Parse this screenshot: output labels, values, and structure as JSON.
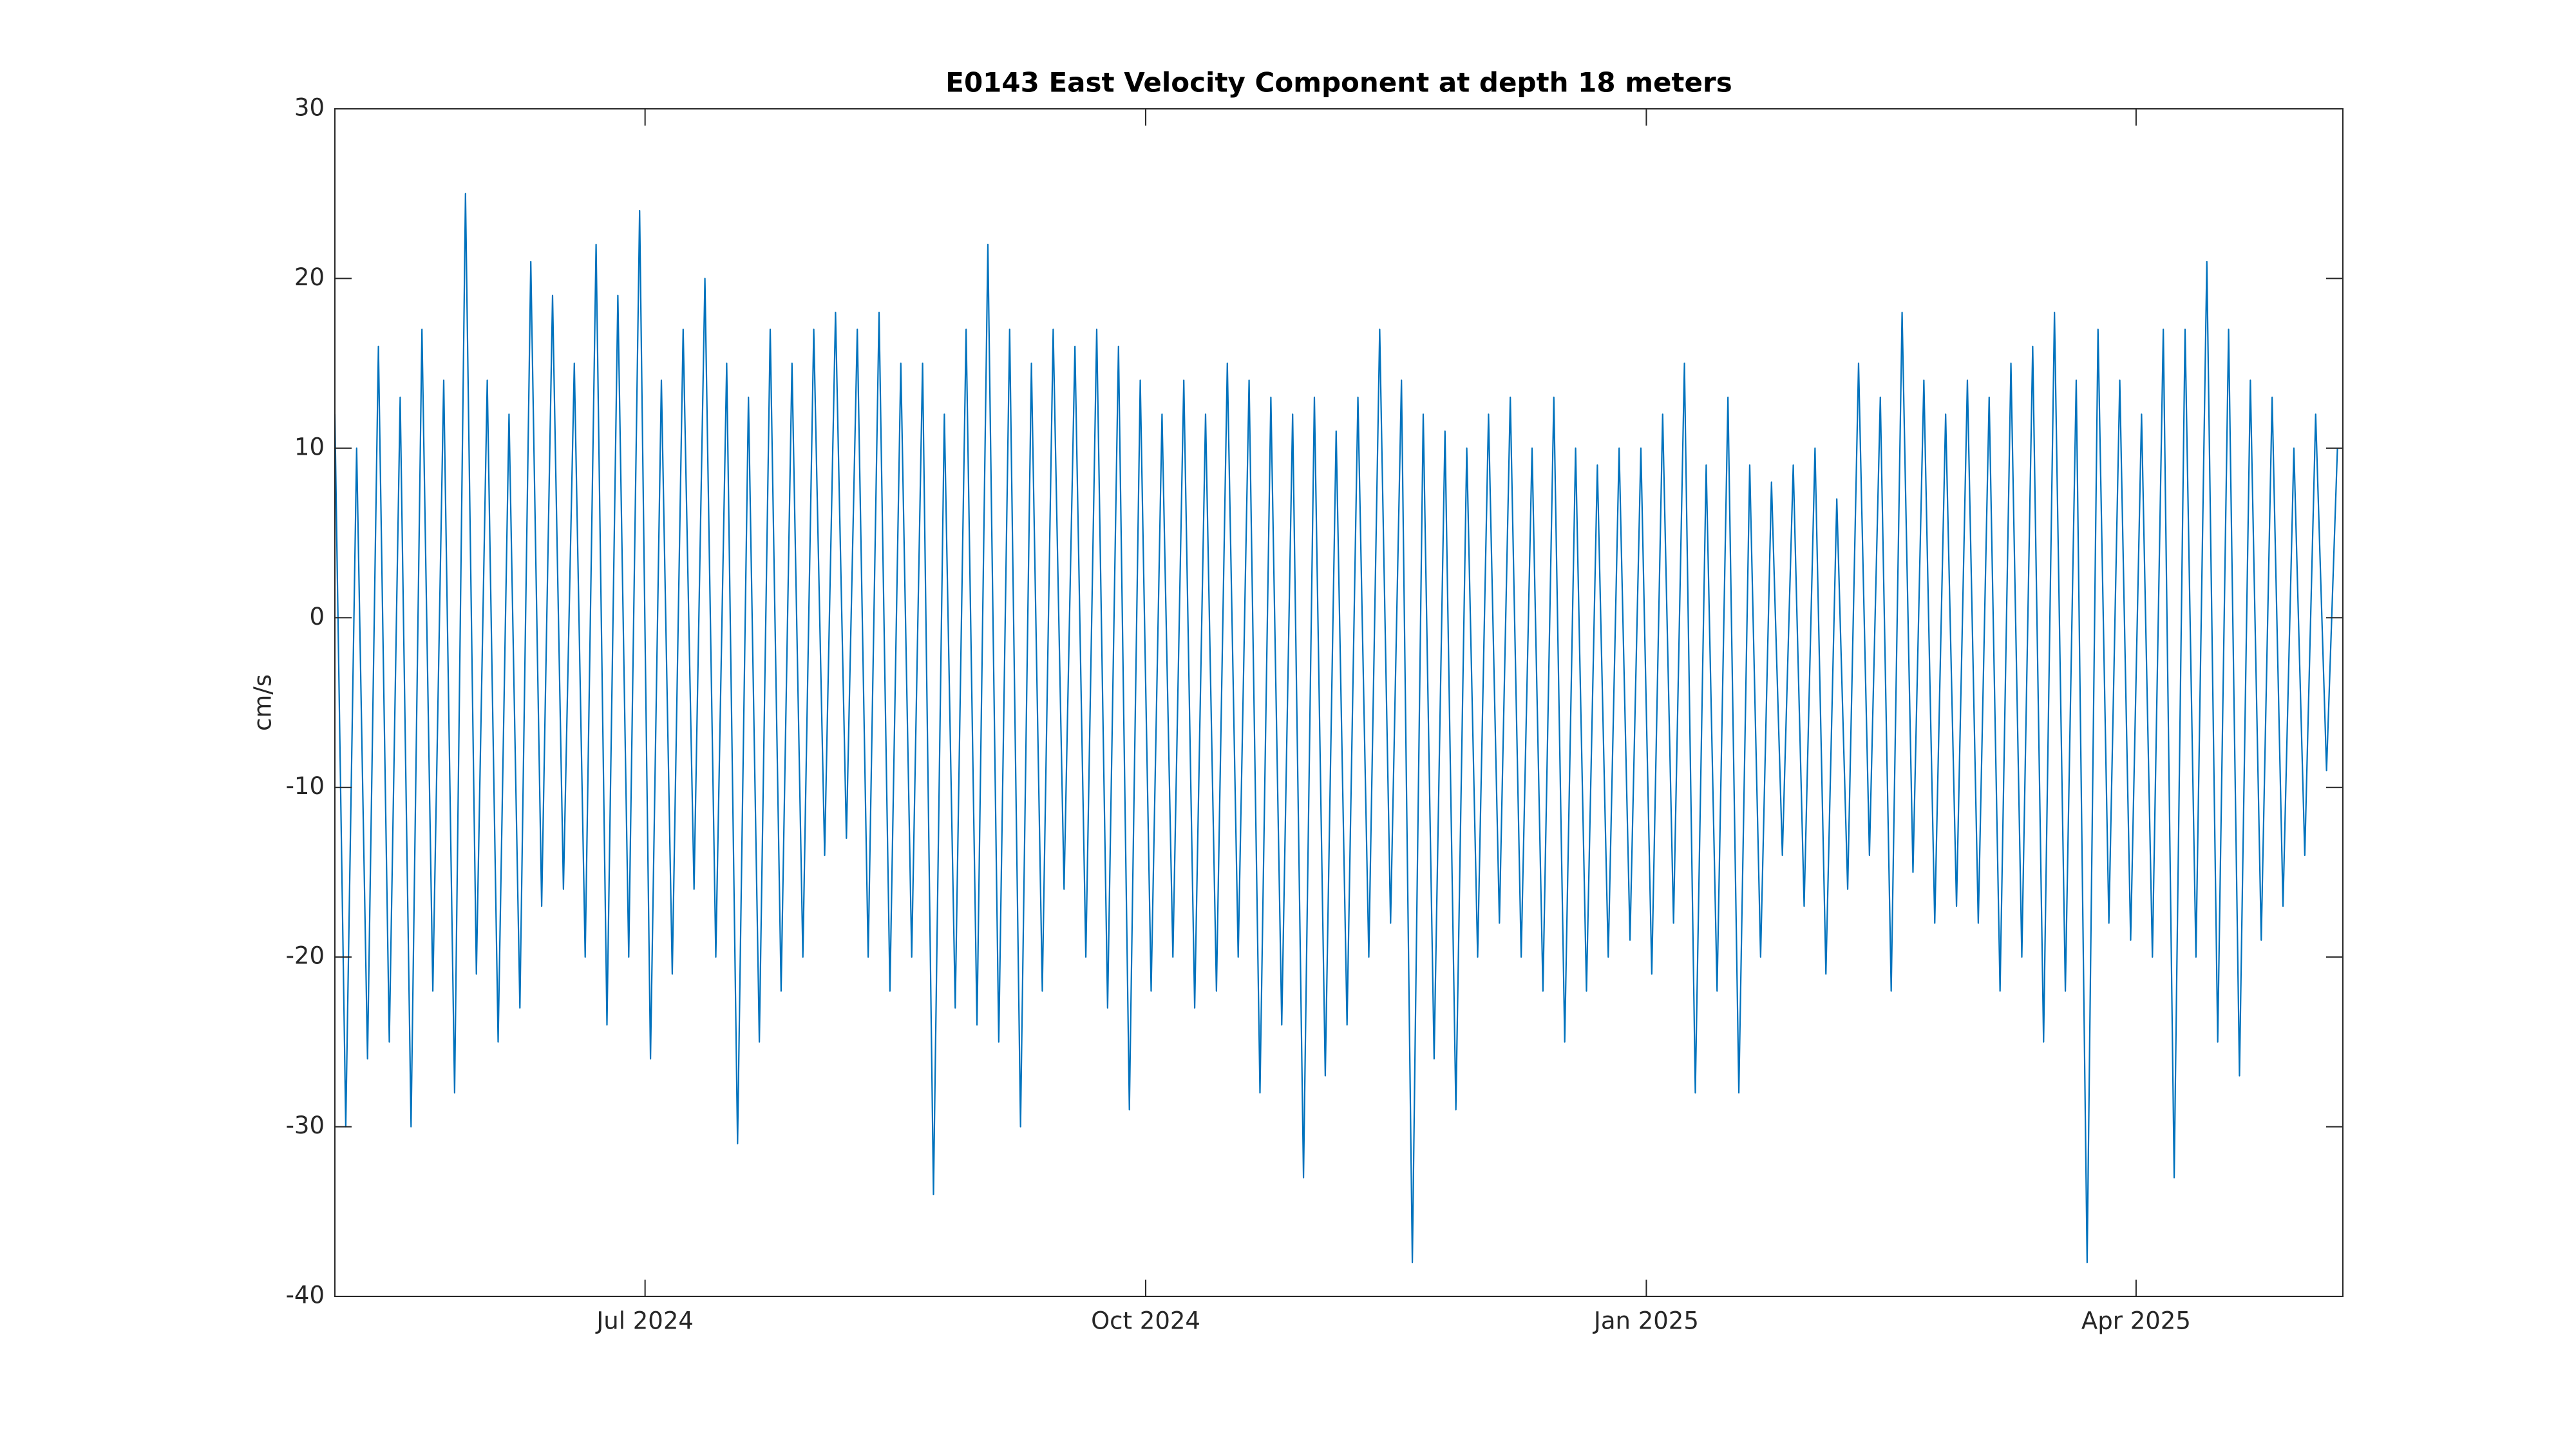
{
  "chart_data": {
    "type": "line",
    "title": "E0143 East Velocity Component at depth 18 meters",
    "ylabel": "cm/s",
    "color": "#0072bd",
    "x": [
      0,
      2,
      4,
      6,
      8,
      10,
      12,
      14,
      16,
      18,
      20,
      22,
      24,
      26,
      28,
      30,
      32,
      34,
      36,
      38,
      40,
      42,
      44,
      46,
      48,
      50,
      52,
      54,
      56,
      58,
      60,
      62,
      64,
      66,
      68,
      70,
      72,
      74,
      76,
      78,
      80,
      82,
      84,
      86,
      88,
      90,
      92,
      94,
      96,
      98,
      100,
      102,
      104,
      106,
      108,
      110,
      112,
      114,
      116,
      118,
      120,
      122,
      124,
      126,
      128,
      130,
      132,
      134,
      136,
      138,
      140,
      142,
      144,
      146,
      148,
      150,
      152,
      154,
      156,
      158,
      160,
      162,
      164,
      166,
      168,
      170,
      172,
      174,
      176,
      178,
      180,
      182,
      184,
      186,
      188,
      190,
      192,
      194,
      196,
      198,
      200,
      202,
      204,
      206,
      208,
      210,
      212,
      214,
      216,
      218,
      220,
      222,
      224,
      226,
      228,
      230,
      232,
      234,
      236,
      238,
      240,
      242,
      244,
      246,
      248,
      250,
      252,
      254,
      256,
      258,
      260,
      262,
      264,
      266,
      268,
      270,
      272,
      274,
      276,
      278,
      280,
      282,
      284,
      286,
      288,
      290,
      292,
      294,
      296,
      298,
      300,
      302,
      304,
      306,
      308,
      310,
      312,
      314,
      316,
      318,
      320,
      322,
      324,
      326,
      328,
      330,
      332,
      334,
      336,
      338,
      340,
      342,
      344,
      346,
      348,
      350,
      352,
      354,
      356,
      358,
      360,
      362,
      364,
      366,
      368
    ],
    "values": [
      12,
      -30,
      10,
      -26,
      16,
      -25,
      13,
      -30,
      17,
      -22,
      14,
      -28,
      25,
      -21,
      14,
      -25,
      12,
      -23,
      21,
      -17,
      19,
      -16,
      15,
      -20,
      22,
      -24,
      19,
      -20,
      24,
      -26,
      14,
      -21,
      17,
      -16,
      20,
      -20,
      15,
      -31,
      13,
      -25,
      17,
      -22,
      15,
      -20,
      17,
      -14,
      18,
      -13,
      17,
      -20,
      18,
      -22,
      15,
      -20,
      15,
      -34,
      12,
      -23,
      17,
      -24,
      22,
      -25,
      17,
      -30,
      15,
      -22,
      17,
      -16,
      16,
      -20,
      17,
      -23,
      16,
      -29,
      14,
      -22,
      12,
      -20,
      14,
      -23,
      12,
      -22,
      15,
      -20,
      14,
      -28,
      13,
      -24,
      12,
      -33,
      13,
      -27,
      11,
      -24,
      13,
      -20,
      17,
      -18,
      14,
      -38,
      12,
      -26,
      11,
      -29,
      10,
      -20,
      12,
      -18,
      13,
      -20,
      10,
      -22,
      13,
      -25,
      10,
      -22,
      9,
      -20,
      10,
      -19,
      10,
      -21,
      12,
      -18,
      15,
      -28,
      9,
      -22,
      13,
      -28,
      9,
      -20,
      8,
      -14,
      9,
      -17,
      10,
      -21,
      7,
      -16,
      15,
      -14,
      13,
      -22,
      18,
      -15,
      14,
      -18,
      12,
      -17,
      14,
      -18,
      13,
      -22,
      15,
      -20,
      16,
      -25,
      18,
      -22,
      14,
      -38,
      17,
      -18,
      14,
      -19,
      12,
      -20,
      17,
      -33,
      17,
      -20,
      21,
      -25,
      17,
      -27,
      14,
      -19,
      13,
      -17,
      10,
      -14,
      12,
      -9,
      10
    ],
    "xlim": [
      0,
      369
    ],
    "xticks": [
      {
        "value": 57,
        "label": "Jul 2024"
      },
      {
        "value": 149,
        "label": "Oct 2024"
      },
      {
        "value": 241,
        "label": "Jan 2025"
      },
      {
        "value": 331,
        "label": "Apr 2025"
      }
    ],
    "ylim": [
      -40,
      30
    ],
    "yticks": [
      -40,
      -30,
      -20,
      -10,
      0,
      10,
      20,
      30
    ],
    "grid": false
  }
}
